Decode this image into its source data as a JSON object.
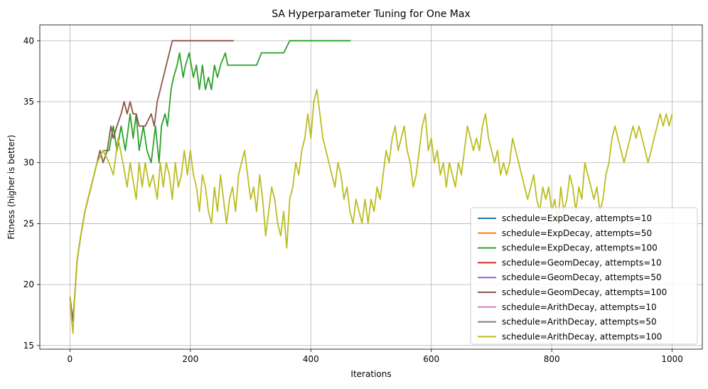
{
  "chart_data": {
    "type": "line",
    "title": "SA Hyperparameter Tuning for One Max",
    "xlabel": "Iterations",
    "ylabel": "Fitness (higher is better)",
    "xlim": [
      -50,
      1050
    ],
    "ylim": [
      14.7,
      41.3
    ],
    "xticks": [
      0,
      200,
      400,
      600,
      800,
      1000
    ],
    "yticks": [
      15,
      20,
      25,
      30,
      35,
      40
    ],
    "grid": true,
    "legend_position": "lower-right",
    "series": [
      {
        "name": "schedule=ExpDecay, attempts=10",
        "color": "#1f77b4",
        "points": []
      },
      {
        "name": "schedule=ExpDecay, attempts=50",
        "color": "#ff7f0e",
        "points": []
      },
      {
        "name": "schedule=ExpDecay, attempts=100",
        "color": "#2ca02c",
        "points": [
          [
            0,
            19
          ],
          [
            5,
            17
          ],
          [
            8,
            19
          ],
          [
            12,
            22
          ],
          [
            18,
            24
          ],
          [
            25,
            26
          ],
          [
            35,
            28
          ],
          [
            45,
            30
          ],
          [
            55,
            31
          ],
          [
            65,
            31
          ],
          [
            72,
            33
          ],
          [
            78,
            31
          ],
          [
            85,
            33
          ],
          [
            92,
            31
          ],
          [
            100,
            34
          ],
          [
            105,
            32
          ],
          [
            110,
            34
          ],
          [
            115,
            31
          ],
          [
            122,
            33
          ],
          [
            128,
            31
          ],
          [
            135,
            30
          ],
          [
            142,
            33
          ],
          [
            148,
            30
          ],
          [
            152,
            33
          ],
          [
            158,
            34
          ],
          [
            162,
            33
          ],
          [
            168,
            36
          ],
          [
            172,
            37
          ],
          [
            178,
            38
          ],
          [
            182,
            39
          ],
          [
            188,
            37
          ],
          [
            192,
            38
          ],
          [
            198,
            39
          ],
          [
            205,
            37
          ],
          [
            210,
            38
          ],
          [
            215,
            36
          ],
          [
            220,
            38
          ],
          [
            225,
            36
          ],
          [
            230,
            37
          ],
          [
            235,
            36
          ],
          [
            240,
            38
          ],
          [
            245,
            37
          ],
          [
            250,
            38
          ],
          [
            258,
            39
          ],
          [
            262,
            38
          ],
          [
            270,
            38
          ],
          [
            310,
            38
          ],
          [
            318,
            39
          ],
          [
            355,
            39
          ],
          [
            365,
            40
          ],
          [
            466,
            40
          ]
        ]
      },
      {
        "name": "schedule=GeomDecay, attempts=10",
        "color": "#d62728",
        "points": []
      },
      {
        "name": "schedule=GeomDecay, attempts=50",
        "color": "#9467bd",
        "points": []
      },
      {
        "name": "schedule=GeomDecay, attempts=100",
        "color": "#8c564b",
        "points": [
          [
            0,
            19
          ],
          [
            5,
            17
          ],
          [
            8,
            19
          ],
          [
            12,
            22
          ],
          [
            18,
            24
          ],
          [
            25,
            26
          ],
          [
            35,
            28
          ],
          [
            45,
            30
          ],
          [
            50,
            31
          ],
          [
            55,
            30
          ],
          [
            62,
            31
          ],
          [
            68,
            33
          ],
          [
            72,
            32
          ],
          [
            78,
            33
          ],
          [
            85,
            34
          ],
          [
            90,
            35
          ],
          [
            95,
            34
          ],
          [
            100,
            35
          ],
          [
            105,
            34
          ],
          [
            110,
            34
          ],
          [
            115,
            33
          ],
          [
            125,
            33
          ],
          [
            135,
            34
          ],
          [
            140,
            33
          ],
          [
            145,
            35
          ],
          [
            150,
            36
          ],
          [
            155,
            37
          ],
          [
            160,
            38
          ],
          [
            165,
            39
          ],
          [
            170,
            40
          ],
          [
            220,
            40
          ],
          [
            272,
            40
          ]
        ]
      },
      {
        "name": "schedule=ArithDecay, attempts=10",
        "color": "#e377c2",
        "points": []
      },
      {
        "name": "schedule=ArithDecay, attempts=50",
        "color": "#7f7f7f",
        "points": []
      },
      {
        "name": "schedule=ArithDecay, attempts=100",
        "color": "#bcbd22",
        "points": [
          [
            0,
            19
          ],
          [
            3,
            17
          ],
          [
            5,
            16
          ],
          [
            8,
            19
          ],
          [
            12,
            22
          ],
          [
            18,
            24
          ],
          [
            25,
            26
          ],
          [
            35,
            28
          ],
          [
            45,
            30
          ],
          [
            55,
            31
          ],
          [
            65,
            30
          ],
          [
            72,
            29
          ],
          [
            80,
            32
          ],
          [
            88,
            30
          ],
          [
            95,
            28
          ],
          [
            100,
            30
          ],
          [
            110,
            27
          ],
          [
            115,
            30
          ],
          [
            120,
            28
          ],
          [
            125,
            30
          ],
          [
            132,
            28
          ],
          [
            138,
            29
          ],
          [
            145,
            27
          ],
          [
            150,
            30
          ],
          [
            155,
            28
          ],
          [
            160,
            30
          ],
          [
            165,
            29
          ],
          [
            170,
            27
          ],
          [
            175,
            30
          ],
          [
            180,
            28
          ],
          [
            185,
            29
          ],
          [
            190,
            31
          ],
          [
            195,
            29
          ],
          [
            200,
            31
          ],
          [
            205,
            29
          ],
          [
            210,
            28
          ],
          [
            215,
            26
          ],
          [
            220,
            29
          ],
          [
            225,
            28
          ],
          [
            230,
            26
          ],
          [
            235,
            25
          ],
          [
            240,
            28
          ],
          [
            245,
            26
          ],
          [
            250,
            29
          ],
          [
            255,
            27
          ],
          [
            260,
            25
          ],
          [
            265,
            27
          ],
          [
            270,
            28
          ],
          [
            275,
            26
          ],
          [
            280,
            29
          ],
          [
            285,
            30
          ],
          [
            290,
            31
          ],
          [
            295,
            29
          ],
          [
            300,
            27
          ],
          [
            305,
            28
          ],
          [
            310,
            26
          ],
          [
            315,
            29
          ],
          [
            320,
            27
          ],
          [
            325,
            24
          ],
          [
            330,
            26
          ],
          [
            335,
            28
          ],
          [
            340,
            27
          ],
          [
            345,
            25
          ],
          [
            350,
            24
          ],
          [
            355,
            26
          ],
          [
            360,
            23
          ],
          [
            365,
            27
          ],
          [
            370,
            28
          ],
          [
            375,
            30
          ],
          [
            380,
            29
          ],
          [
            385,
            31
          ],
          [
            390,
            32
          ],
          [
            395,
            34
          ],
          [
            400,
            32
          ],
          [
            405,
            35
          ],
          [
            410,
            36
          ],
          [
            415,
            34
          ],
          [
            420,
            32
          ],
          [
            425,
            31
          ],
          [
            430,
            30
          ],
          [
            435,
            29
          ],
          [
            440,
            28
          ],
          [
            445,
            30
          ],
          [
            450,
            29
          ],
          [
            455,
            27
          ],
          [
            460,
            28
          ],
          [
            465,
            26
          ],
          [
            470,
            25
          ],
          [
            475,
            27
          ],
          [
            480,
            26
          ],
          [
            485,
            25
          ],
          [
            490,
            27
          ],
          [
            495,
            25
          ],
          [
            500,
            27
          ],
          [
            505,
            26
          ],
          [
            510,
            28
          ],
          [
            515,
            27
          ],
          [
            520,
            29
          ],
          [
            525,
            31
          ],
          [
            530,
            30
          ],
          [
            535,
            32
          ],
          [
            540,
            33
          ],
          [
            545,
            31
          ],
          [
            550,
            32
          ],
          [
            555,
            33
          ],
          [
            560,
            31
          ],
          [
            565,
            30
          ],
          [
            570,
            28
          ],
          [
            575,
            29
          ],
          [
            580,
            31
          ],
          [
            585,
            33
          ],
          [
            590,
            34
          ],
          [
            595,
            31
          ],
          [
            600,
            32
          ],
          [
            605,
            30
          ],
          [
            610,
            31
          ],
          [
            615,
            29
          ],
          [
            620,
            30
          ],
          [
            625,
            28
          ],
          [
            630,
            30
          ],
          [
            635,
            29
          ],
          [
            640,
            28
          ],
          [
            645,
            30
          ],
          [
            650,
            29
          ],
          [
            655,
            31
          ],
          [
            660,
            33
          ],
          [
            665,
            32
          ],
          [
            670,
            31
          ],
          [
            675,
            32
          ],
          [
            680,
            31
          ],
          [
            685,
            33
          ],
          [
            690,
            34
          ],
          [
            695,
            32
          ],
          [
            700,
            31
          ],
          [
            705,
            30
          ],
          [
            710,
            31
          ],
          [
            715,
            29
          ],
          [
            720,
            30
          ],
          [
            725,
            29
          ],
          [
            730,
            30
          ],
          [
            735,
            32
          ],
          [
            740,
            31
          ],
          [
            745,
            30
          ],
          [
            750,
            29
          ],
          [
            755,
            28
          ],
          [
            760,
            27
          ],
          [
            765,
            28
          ],
          [
            770,
            29
          ],
          [
            775,
            27
          ],
          [
            780,
            26
          ],
          [
            785,
            28
          ],
          [
            790,
            27
          ],
          [
            795,
            28
          ],
          [
            800,
            26
          ],
          [
            805,
            27
          ],
          [
            810,
            25
          ],
          [
            815,
            28
          ],
          [
            820,
            26
          ],
          [
            825,
            27
          ],
          [
            830,
            29
          ],
          [
            835,
            28
          ],
          [
            840,
            26
          ],
          [
            845,
            28
          ],
          [
            850,
            27
          ],
          [
            855,
            30
          ],
          [
            860,
            29
          ],
          [
            865,
            28
          ],
          [
            870,
            27
          ],
          [
            875,
            28
          ],
          [
            880,
            26
          ],
          [
            885,
            27
          ],
          [
            890,
            29
          ],
          [
            895,
            30
          ],
          [
            900,
            32
          ],
          [
            905,
            33
          ],
          [
            910,
            32
          ],
          [
            915,
            31
          ],
          [
            920,
            30
          ],
          [
            925,
            31
          ],
          [
            930,
            32
          ],
          [
            935,
            33
          ],
          [
            940,
            32
          ],
          [
            945,
            33
          ],
          [
            950,
            32
          ],
          [
            955,
            31
          ],
          [
            960,
            30
          ],
          [
            965,
            31
          ],
          [
            970,
            32
          ],
          [
            975,
            33
          ],
          [
            980,
            34
          ],
          [
            985,
            33
          ],
          [
            990,
            34
          ],
          [
            995,
            33
          ],
          [
            1000,
            34
          ]
        ]
      }
    ]
  }
}
